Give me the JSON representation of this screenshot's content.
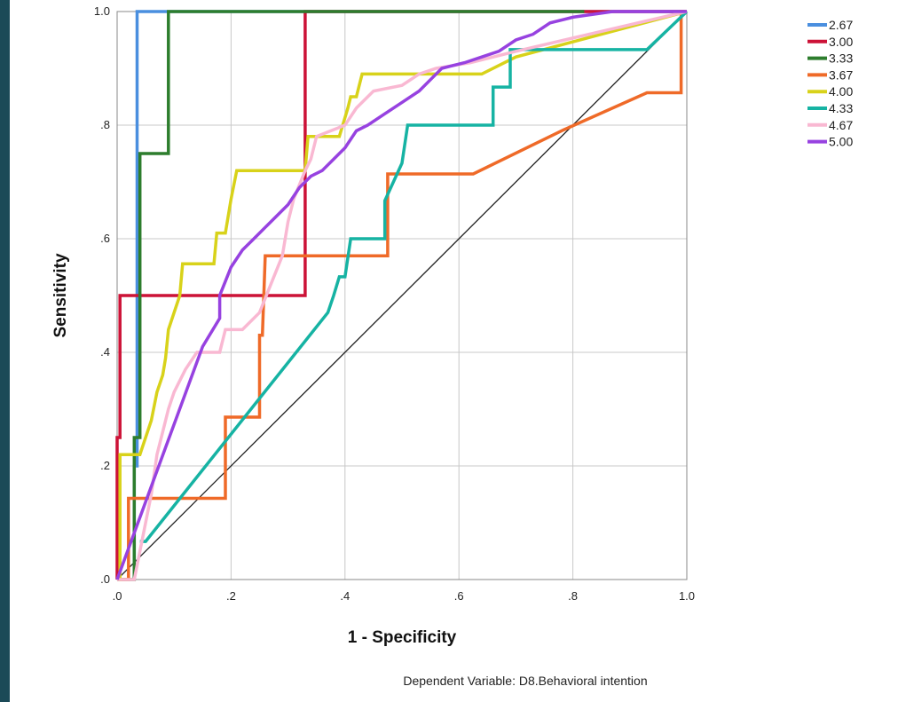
{
  "chart_data": {
    "type": "line",
    "xlabel": "1 - Specificity",
    "ylabel": "Sensitivity",
    "footnote": "Dependent Variable: D8.Behavioral intention",
    "xlim": [
      0,
      1
    ],
    "ylim": [
      0,
      1
    ],
    "xticks": [
      ".0",
      ".2",
      ".4",
      ".6",
      ".8",
      "1.0"
    ],
    "yticks": [
      ".0",
      ".2",
      ".4",
      ".6",
      ".8",
      "1.0"
    ],
    "grid": true,
    "legend_position": "top-right",
    "reference_line": {
      "x": [
        0,
        1
      ],
      "y": [
        0,
        1
      ],
      "color": "#222222"
    },
    "series": [
      {
        "name": "2.67",
        "color": "#4a8fdf",
        "x": [
          0.03,
          0.03,
          0.035,
          0.035,
          1.0
        ],
        "y": [
          0.0,
          0.2,
          0.2,
          1.0,
          1.0
        ]
      },
      {
        "name": "3.00",
        "color": "#cc1237",
        "x": [
          0,
          0,
          0.005,
          0.005,
          0.33,
          0.33,
          1.0
        ],
        "y": [
          0,
          0.25,
          0.25,
          0.5,
          0.5,
          1.0,
          1.0
        ]
      },
      {
        "name": "3.33",
        "color": "#2d7d2d",
        "x": [
          0,
          0.03,
          0.03,
          0.04,
          0.04,
          0.05,
          0.05,
          0.09,
          0.09,
          0.82
        ],
        "y": [
          0,
          0,
          0.25,
          0.25,
          0.75,
          0.75,
          0.75,
          0.75,
          1.0,
          1.0
        ]
      },
      {
        "name": "3.67",
        "color": "#ef6a28",
        "x": [
          0,
          0.01,
          0.02,
          0.02,
          0.19,
          0.19,
          0.25,
          0.25,
          0.255,
          0.26,
          0.26,
          0.475,
          0.475,
          0.625,
          0.78,
          0.93,
          0.99,
          0.99,
          1.0
        ],
        "y": [
          0,
          0.0,
          0.0,
          0.143,
          0.143,
          0.286,
          0.286,
          0.43,
          0.43,
          0.57,
          0.57,
          0.57,
          0.714,
          0.714,
          0.79,
          0.857,
          0.857,
          1.0,
          1.0
        ]
      },
      {
        "name": "4.00",
        "color": "#d8d21a",
        "x": [
          0,
          0.005,
          0.005,
          0.04,
          0.06,
          0.07,
          0.08,
          0.085,
          0.09,
          0.1,
          0.11,
          0.115,
          0.17,
          0.175,
          0.19,
          0.2,
          0.21,
          0.33,
          0.335,
          0.39,
          0.405,
          0.41,
          0.42,
          0.43,
          0.64,
          0.7,
          1.0
        ],
        "y": [
          0,
          0.0,
          0.22,
          0.22,
          0.28,
          0.33,
          0.36,
          0.39,
          0.44,
          0.47,
          0.5,
          0.556,
          0.556,
          0.61,
          0.61,
          0.67,
          0.72,
          0.72,
          0.78,
          0.78,
          0.83,
          0.85,
          0.85,
          0.89,
          0.89,
          0.92,
          1.0
        ]
      },
      {
        "name": "4.33",
        "color": "#16b3a3",
        "x": [
          0.04,
          0.05,
          0.37,
          0.38,
          0.39,
          0.4,
          0.41,
          0.47,
          0.47,
          0.5,
          0.51,
          0.66,
          0.66,
          0.69,
          0.69,
          0.93,
          1.0
        ],
        "y": [
          0.067,
          0.067,
          0.47,
          0.5,
          0.533,
          0.533,
          0.6,
          0.6,
          0.667,
          0.733,
          0.8,
          0.8,
          0.867,
          0.867,
          0.933,
          0.933,
          1.0
        ]
      },
      {
        "name": "4.67",
        "color": "#f9b8d2",
        "x": [
          0,
          0.03,
          0.05,
          0.06,
          0.07,
          0.08,
          0.09,
          0.1,
          0.12,
          0.14,
          0.18,
          0.19,
          0.22,
          0.25,
          0.27,
          0.29,
          0.3,
          0.31,
          0.33,
          0.34,
          0.35,
          0.4,
          0.42,
          0.45,
          0.5,
          0.53,
          0.56,
          0.62,
          0.7,
          1.0
        ],
        "y": [
          0,
          0.0,
          0.1,
          0.15,
          0.22,
          0.26,
          0.3,
          0.33,
          0.37,
          0.4,
          0.4,
          0.44,
          0.44,
          0.47,
          0.52,
          0.57,
          0.63,
          0.67,
          0.72,
          0.74,
          0.78,
          0.8,
          0.83,
          0.86,
          0.87,
          0.89,
          0.9,
          0.91,
          0.93,
          1.0
        ]
      },
      {
        "name": "5.00",
        "color": "#9742e0",
        "x": [
          0,
          0.15,
          0.18,
          0.18,
          0.2,
          0.22,
          0.24,
          0.26,
          0.28,
          0.3,
          0.32,
          0.34,
          0.36,
          0.38,
          0.4,
          0.42,
          0.44,
          0.47,
          0.5,
          0.53,
          0.55,
          0.57,
          0.61,
          0.64,
          0.67,
          0.7,
          0.73,
          0.76,
          0.8,
          0.87,
          1.0
        ],
        "y": [
          0,
          0.41,
          0.46,
          0.5,
          0.55,
          0.58,
          0.6,
          0.62,
          0.64,
          0.66,
          0.69,
          0.71,
          0.72,
          0.74,
          0.76,
          0.79,
          0.8,
          0.82,
          0.84,
          0.86,
          0.88,
          0.9,
          0.91,
          0.92,
          0.93,
          0.95,
          0.96,
          0.98,
          0.99,
          1.0,
          1.0
        ]
      }
    ]
  }
}
